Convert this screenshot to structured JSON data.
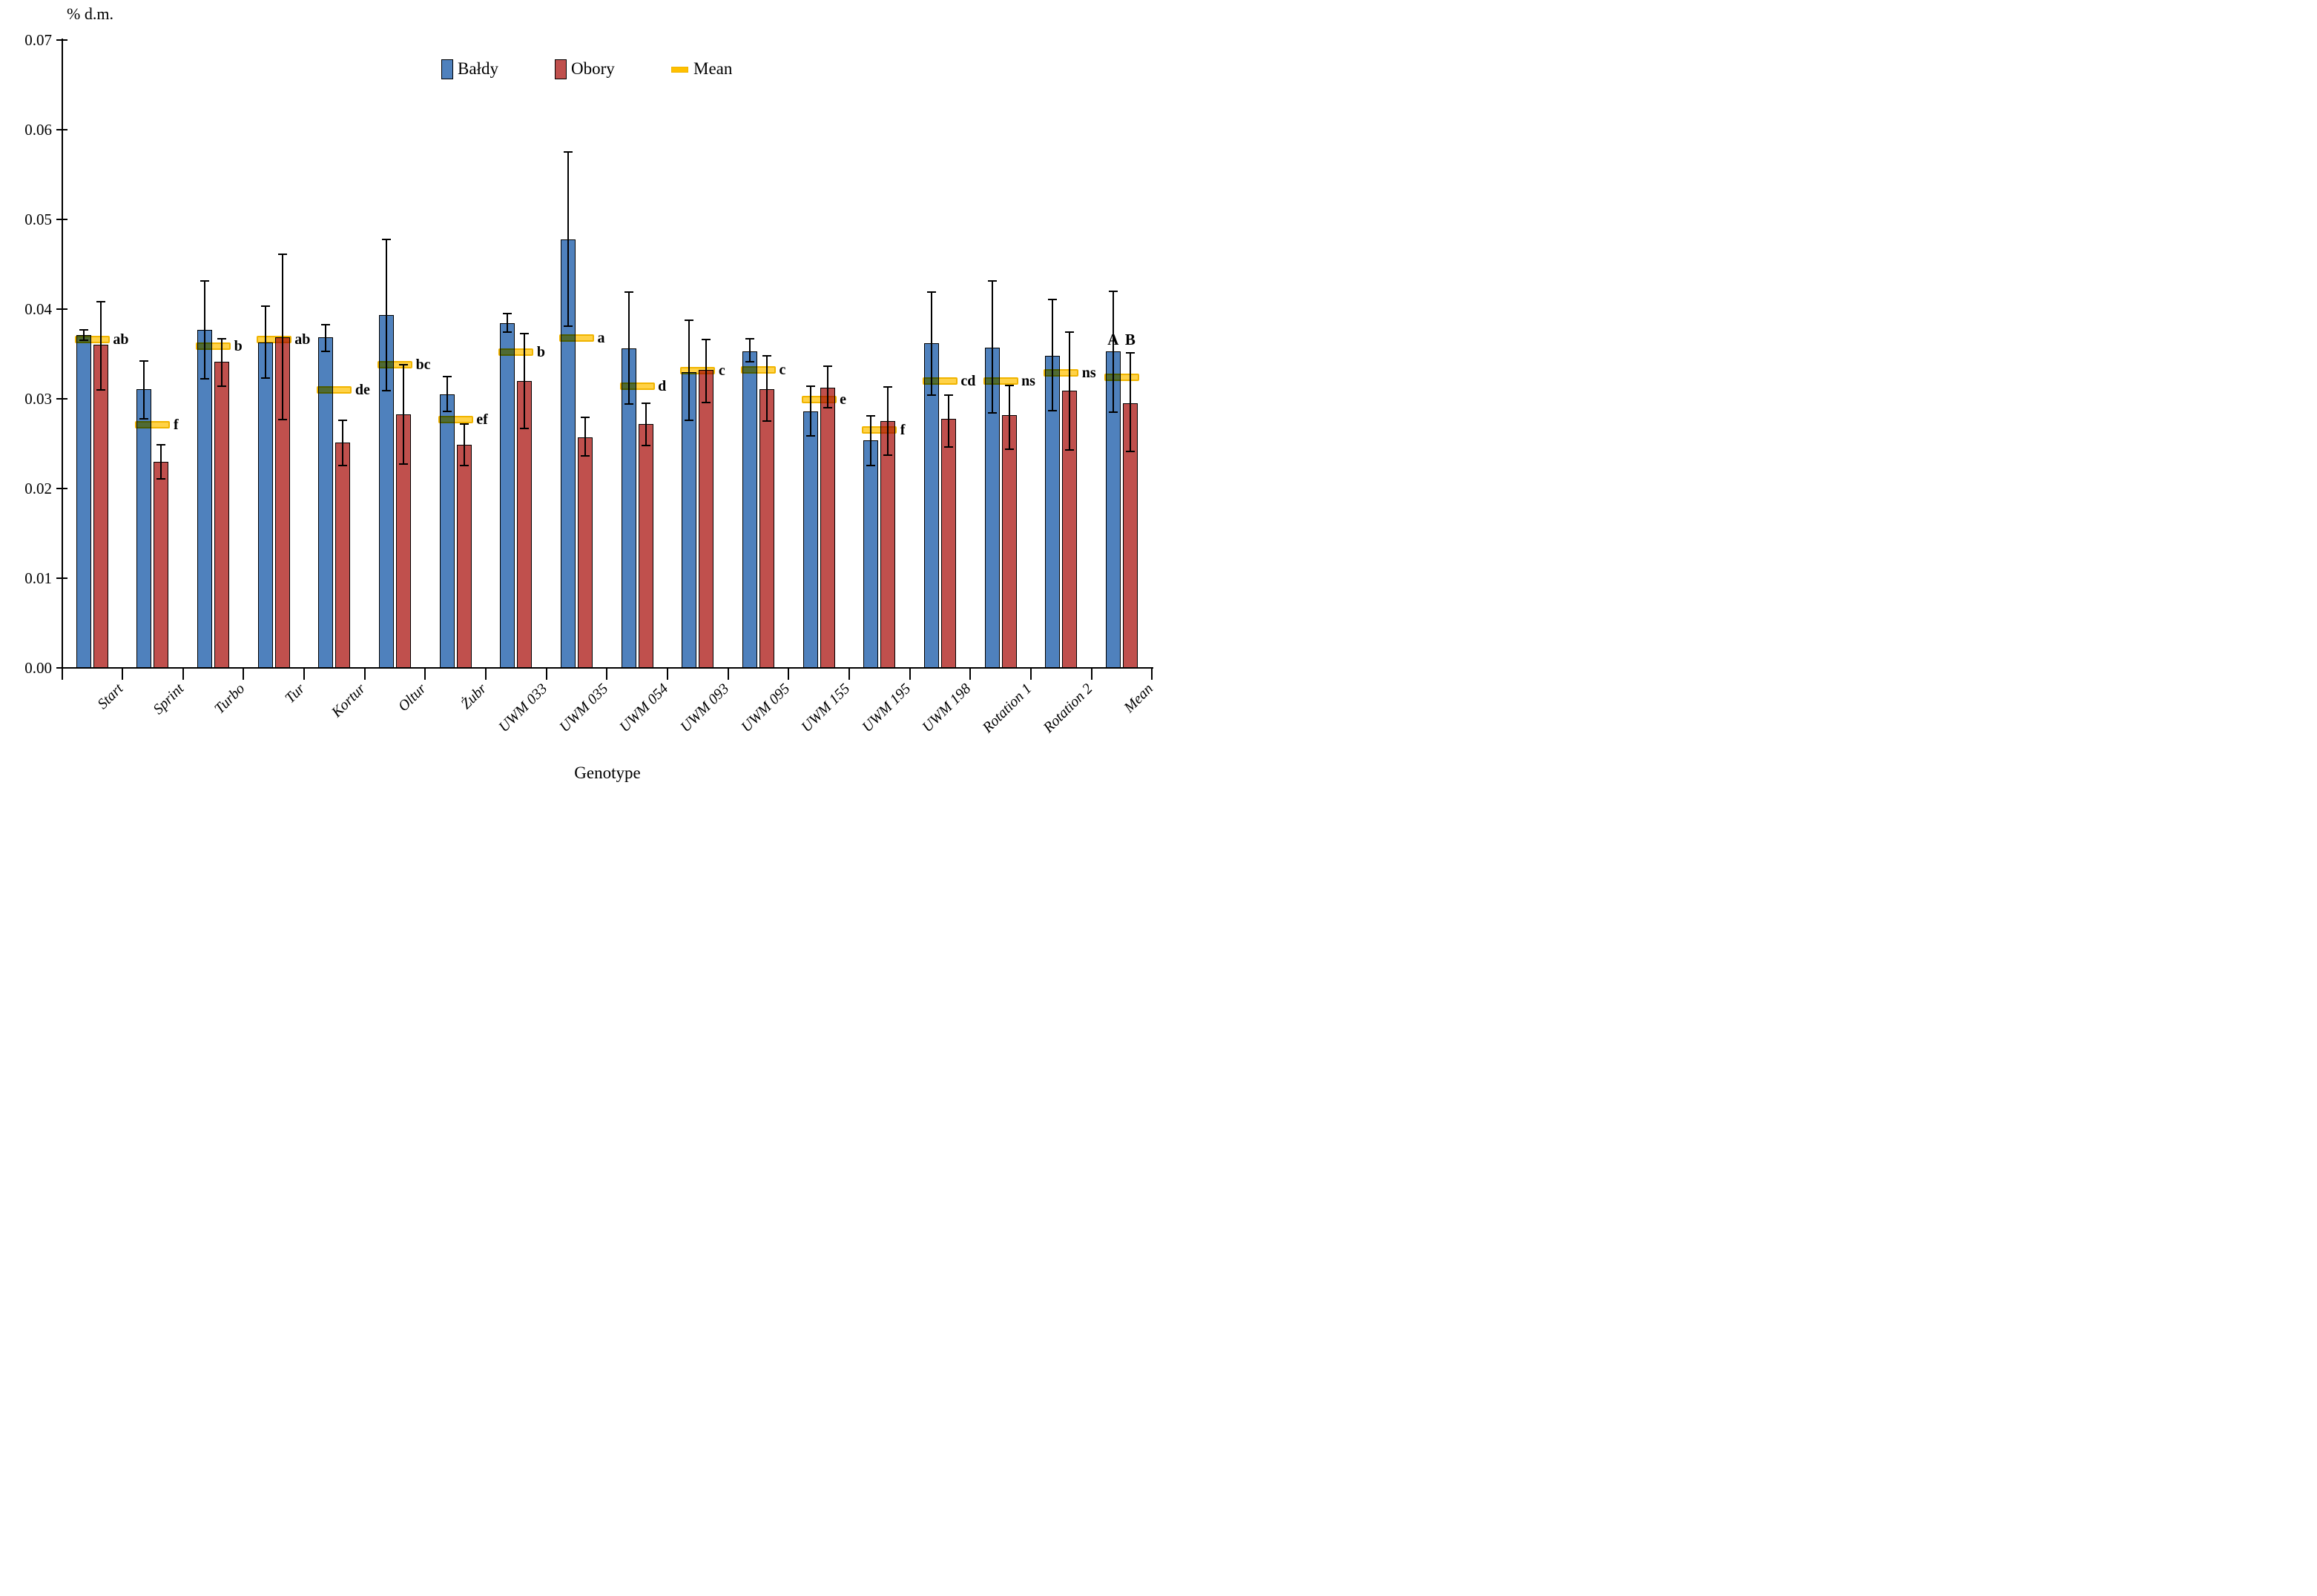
{
  "figure": {
    "y_axis_title": "% d.m.",
    "x_axis_title": "Genotype",
    "y_tick_labels": [
      "0.00",
      "0.01",
      "0.02",
      "0.03",
      "0.04",
      "0.05",
      "0.06",
      "0.07"
    ]
  },
  "legend": {
    "items": [
      {
        "label": "Bałdy",
        "color": "#4F81BD",
        "marker": "rect"
      },
      {
        "label": "Obory",
        "color": "#C0504D",
        "marker": "rect"
      },
      {
        "label": "Mean",
        "color": "#FFC000",
        "marker": "dash"
      }
    ]
  },
  "chart_data": {
    "type": "bar",
    "title": "",
    "xlabel": "Genotype",
    "ylabel": "% d.m.",
    "ylim": [
      0,
      0.07
    ],
    "ytick_step": 0.01,
    "grid": false,
    "legend_position": "top-center",
    "categories": [
      "Start",
      "Sprint",
      "Turbo",
      "Tur",
      "Kortur",
      "Oltur",
      "Żubr",
      "UWM 033",
      "UWM 035",
      "UWM 054",
      "UWM 093",
      "UWM 095",
      "UWM 155",
      "UWM 195",
      "UWM 198",
      "Rotation 1",
      "Rotation 2",
      "Mean"
    ],
    "series": [
      {
        "name": "Bałdy",
        "color": "#4F81BD",
        "values": [
          0.0371,
          0.0311,
          0.0377,
          0.0363,
          0.0369,
          0.0393,
          0.0305,
          0.0384,
          0.0478,
          0.0356,
          0.033,
          0.0353,
          0.0286,
          0.0254,
          0.0362,
          0.0357,
          0.0348,
          0.0353
        ],
        "err_low": [
          0.0365,
          0.0278,
          0.0322,
          0.0323,
          0.0353,
          0.0309,
          0.0286,
          0.0374,
          0.0381,
          0.0294,
          0.0276,
          0.0341,
          0.0259,
          0.0226,
          0.0304,
          0.0284,
          0.0287,
          0.0285
        ],
        "err_high": [
          0.0377,
          0.0342,
          0.0431,
          0.0403,
          0.0383,
          0.0478,
          0.0325,
          0.0395,
          0.0575,
          0.0419,
          0.0388,
          0.0367,
          0.0314,
          0.0281,
          0.0419,
          0.0431,
          0.0411,
          0.042
        ]
      },
      {
        "name": "Obory",
        "color": "#C0504D",
        "values": [
          0.036,
          0.023,
          0.0341,
          0.0369,
          0.0251,
          0.0283,
          0.0249,
          0.032,
          0.0257,
          0.0272,
          0.0332,
          0.0311,
          0.0312,
          0.0275,
          0.0278,
          0.0282,
          0.0309,
          0.0295
        ],
        "err_low": [
          0.031,
          0.0211,
          0.0314,
          0.0277,
          0.0226,
          0.0227,
          0.0226,
          0.0267,
          0.0236,
          0.0248,
          0.0296,
          0.0275,
          0.029,
          0.0237,
          0.0246,
          0.0244,
          0.0243,
          0.0241
        ],
        "err_high": [
          0.0408,
          0.0249,
          0.0367,
          0.0461,
          0.0276,
          0.0338,
          0.0272,
          0.0373,
          0.0279,
          0.0295,
          0.0366,
          0.0348,
          0.0336,
          0.0313,
          0.0304,
          0.0315,
          0.0374,
          0.0351
        ]
      },
      {
        "name": "Mean",
        "marker": "dash",
        "color": "#FFC000",
        "values": [
          0.0366,
          0.0271,
          0.0359,
          0.0366,
          0.031,
          0.0338,
          0.0277,
          0.0352,
          0.0368,
          0.0314,
          0.0331,
          0.0332,
          0.0299,
          0.0265,
          0.032,
          0.032,
          0.0329,
          0.0324
        ]
      }
    ],
    "significance_letters": [
      "ab",
      "f",
      "b",
      "ab",
      "de",
      "bc",
      "ef",
      "b",
      "a",
      "d",
      "c",
      "c",
      "e",
      "f",
      "cd",
      "ns",
      "ns",
      ""
    ],
    "mean_group_letters": [
      "A",
      "B"
    ]
  }
}
